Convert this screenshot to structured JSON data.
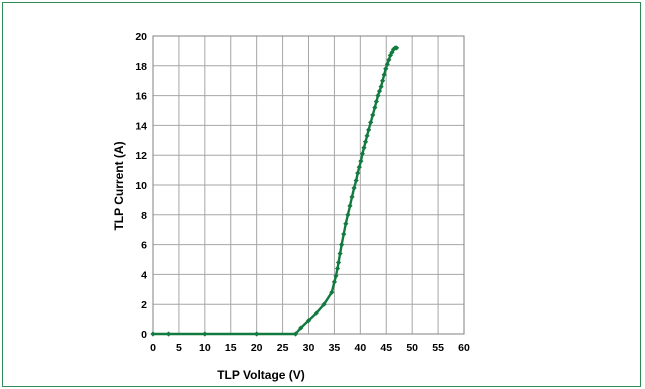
{
  "chart_data": {
    "type": "line",
    "title": "",
    "xlabel": "TLP Voltage (V)",
    "ylabel": "TLP Current (A)",
    "xlim": [
      0,
      60
    ],
    "ylim": [
      0,
      20
    ],
    "xticks": [
      "0",
      "5",
      "10",
      "15",
      "20",
      "25",
      "30",
      "35",
      "40",
      "45",
      "50",
      "55",
      "60"
    ],
    "yticks": [
      "0",
      "2",
      "4",
      "6",
      "8",
      "10",
      "12",
      "14",
      "16",
      "18",
      "20"
    ],
    "grid": true,
    "legend": "none",
    "series": [
      {
        "color": "#137a3f",
        "marker": "diamond",
        "x": [
          0,
          3,
          10,
          20,
          27.5,
          28.5,
          30,
          31.5,
          33,
          34.5,
          35,
          35.3,
          35.6,
          35.8,
          36.1,
          36.4,
          36.8,
          37.2,
          37.6,
          38,
          38.4,
          38.8,
          39.2,
          39.5,
          39.8,
          40.1,
          40.4,
          40.7,
          41,
          41.3,
          41.6,
          42,
          42.4,
          42.8,
          43.1,
          43.4,
          43.7,
          44,
          44.3,
          44.6,
          44.9,
          45.2,
          45.5,
          45.8,
          46.1,
          46.4,
          46.7,
          47
        ],
        "y": [
          0,
          0,
          0,
          0,
          0,
          0.4,
          0.9,
          1.4,
          2.0,
          2.8,
          3.5,
          3.9,
          4.4,
          4.8,
          5.4,
          6.0,
          6.7,
          7.4,
          8.0,
          8.6,
          9.2,
          9.8,
          10.3,
          10.8,
          11.2,
          11.6,
          12.1,
          12.5,
          12.9,
          13.3,
          13.7,
          14.2,
          14.7,
          15.2,
          15.6,
          16.0,
          16.3,
          16.6,
          17.0,
          17.4,
          17.8,
          18.1,
          18.4,
          18.7,
          18.9,
          19.1,
          19.2,
          19.2
        ]
      }
    ]
  }
}
